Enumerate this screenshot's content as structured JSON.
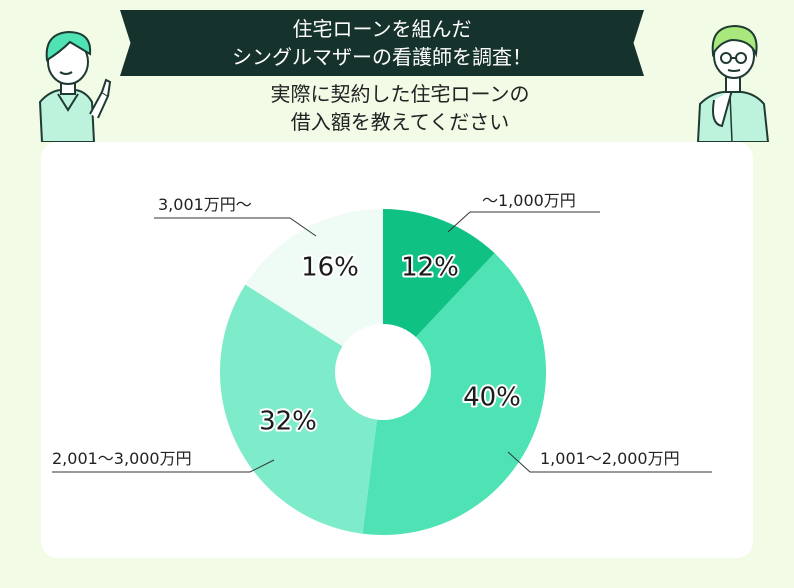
{
  "header": {
    "banner_line1": "住宅ローンを組んだ",
    "banner_line2": "シングルマザーの看護師を調査！",
    "question_line1": "実際に契約した住宅ローンの",
    "question_line2": "借入額を教えてください"
  },
  "chart_data": {
    "type": "pie",
    "donut": true,
    "categories": [
      "〜1,000万円",
      "1,001〜2,000万円",
      "2,001〜3,000万円",
      "3,001万円〜"
    ],
    "values": [
      12,
      40,
      32,
      16
    ],
    "value_labels": [
      "12%",
      "40%",
      "32%",
      "16%"
    ],
    "colors": [
      "#10c184",
      "#4ee2b4",
      "#7eebca",
      "#effbf5"
    ],
    "legend": "callout labels beside slices"
  }
}
